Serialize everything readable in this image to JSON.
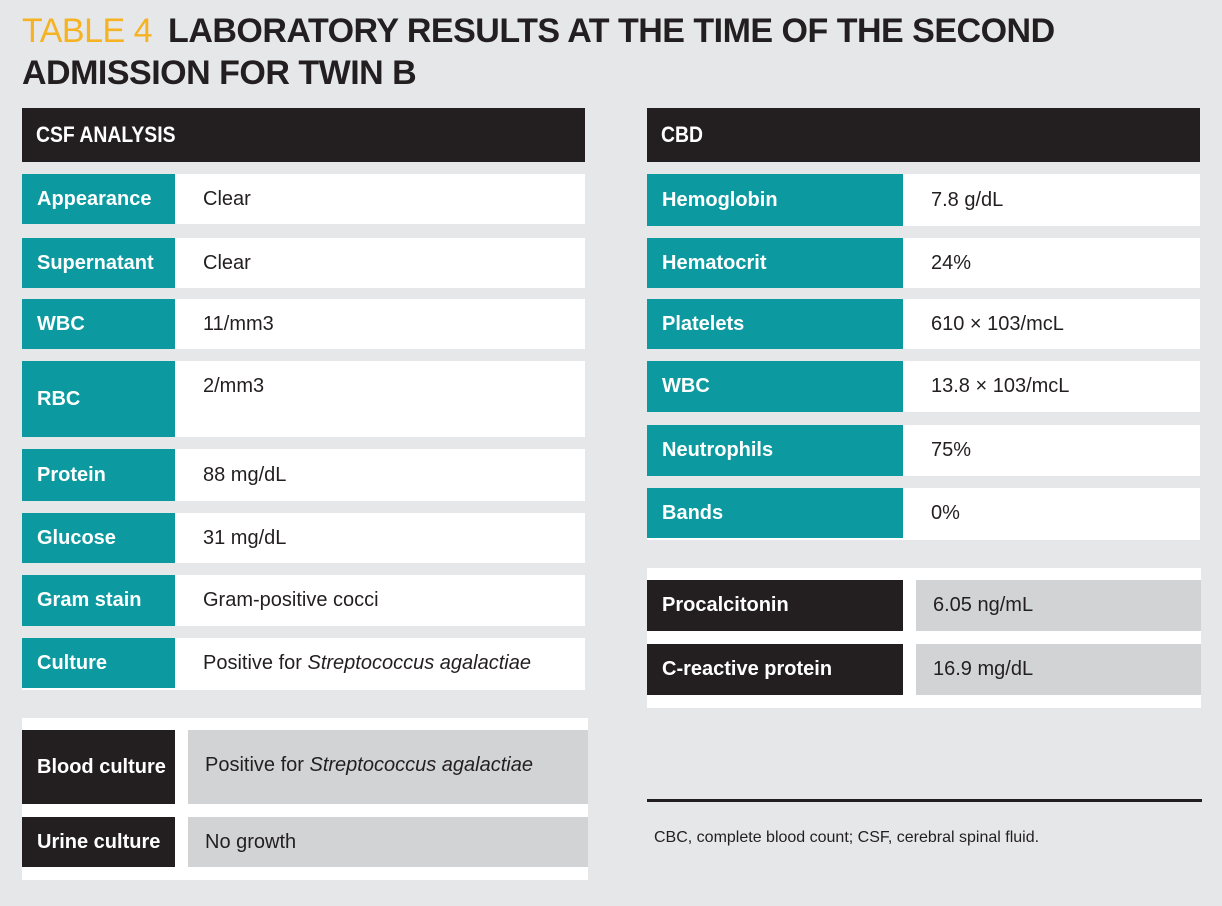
{
  "title": {
    "label": "TABLE 4",
    "text": "LABORATORY RESULTS AT THE TIME OF THE SECOND ADMISSION FOR TWIN B"
  },
  "csf": {
    "header": "CSF ANALYSIS",
    "rows": [
      {
        "label": "Appearance",
        "value": "Clear"
      },
      {
        "label": "Supernatant",
        "value": "Clear"
      },
      {
        "label": "WBC",
        "value": "11/mm3"
      },
      {
        "label": "RBC",
        "value": "2/mm3"
      },
      {
        "label": "Protein",
        "value": "88 mg/dL"
      },
      {
        "label": "Glucose",
        "value": "31 mg/dL"
      },
      {
        "label": "Gram stain",
        "value": "Gram-positive cocci"
      },
      {
        "label": "Culture",
        "value_prefix": "Positive for ",
        "value_italic": "Streptococcus agalactiae"
      }
    ]
  },
  "cultures": {
    "rows": [
      {
        "label": "Blood culture",
        "value_prefix": "Positive for ",
        "value_italic": "Streptococcus agalactiae"
      },
      {
        "label": "Urine culture",
        "value": "No growth"
      }
    ]
  },
  "cbd": {
    "header": "CBD",
    "rows": [
      {
        "label": "Hemoglobin",
        "value": "7.8 g/dL"
      },
      {
        "label": "Hematocrit",
        "value": "24%"
      },
      {
        "label": "Platelets",
        "value": "610 × 103/mcL"
      },
      {
        "label": "WBC",
        "value": "13.8 × 103/mcL"
      },
      {
        "label": "Neutrophils",
        "value": "75%"
      },
      {
        "label": "Bands",
        "value": "0%"
      }
    ]
  },
  "markers": {
    "rows": [
      {
        "label": "Procalcitonin",
        "value": "6.05 ng/mL"
      },
      {
        "label": "C-reactive protein",
        "value": "16.9 mg/dL"
      }
    ]
  },
  "footnote": "CBC, complete blood count; CSF, cerebral spinal fluid."
}
